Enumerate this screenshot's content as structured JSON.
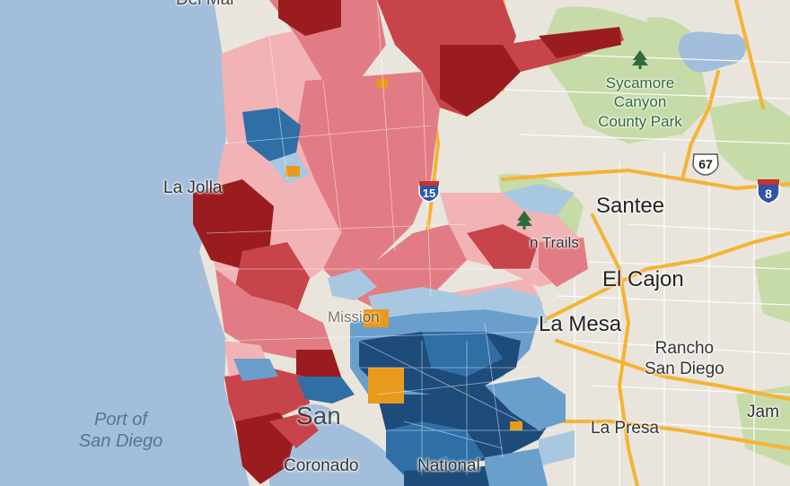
{
  "labels": {
    "santee": "Santee",
    "el_cajon": "El Cajon",
    "la_mesa": "La Mesa",
    "rancho_line1": "Rancho",
    "rancho_line2": "San Diego",
    "la_presa": "La Presa",
    "jamul_partial": "Jam",
    "coronado": "Coronado",
    "national_city_partial": "National",
    "san_diego_partial": "San",
    "la_jolla_partial": "La Jolla",
    "del_mar_partial": "Del Mar",
    "mission_partial": "Mission",
    "trails_partial": "n Trails",
    "port_line1": "Port of",
    "port_line2": "San Diego",
    "park_line1": "Sycamore",
    "park_line2": "Canyon",
    "park_line3": "County Park"
  },
  "highway_shields": {
    "i15": "15",
    "sr67": "67",
    "i8": "8"
  },
  "legend_colors": {
    "strong_republican": "#9b1c1f",
    "republican": "#c7444a",
    "lean_republican": "#e27c84",
    "slight_republican": "#f2b3b6",
    "slight_democrat": "#a8c8e2",
    "lean_democrat": "#6b9fcb",
    "democrat": "#2f6fa6",
    "strong_democrat": "#1d4b7a",
    "tie": "#e89a1c",
    "ocean": "#a3bedb",
    "land": "#e9e5dc",
    "park": "#c6dba8",
    "freeway": "#f5b335"
  }
}
